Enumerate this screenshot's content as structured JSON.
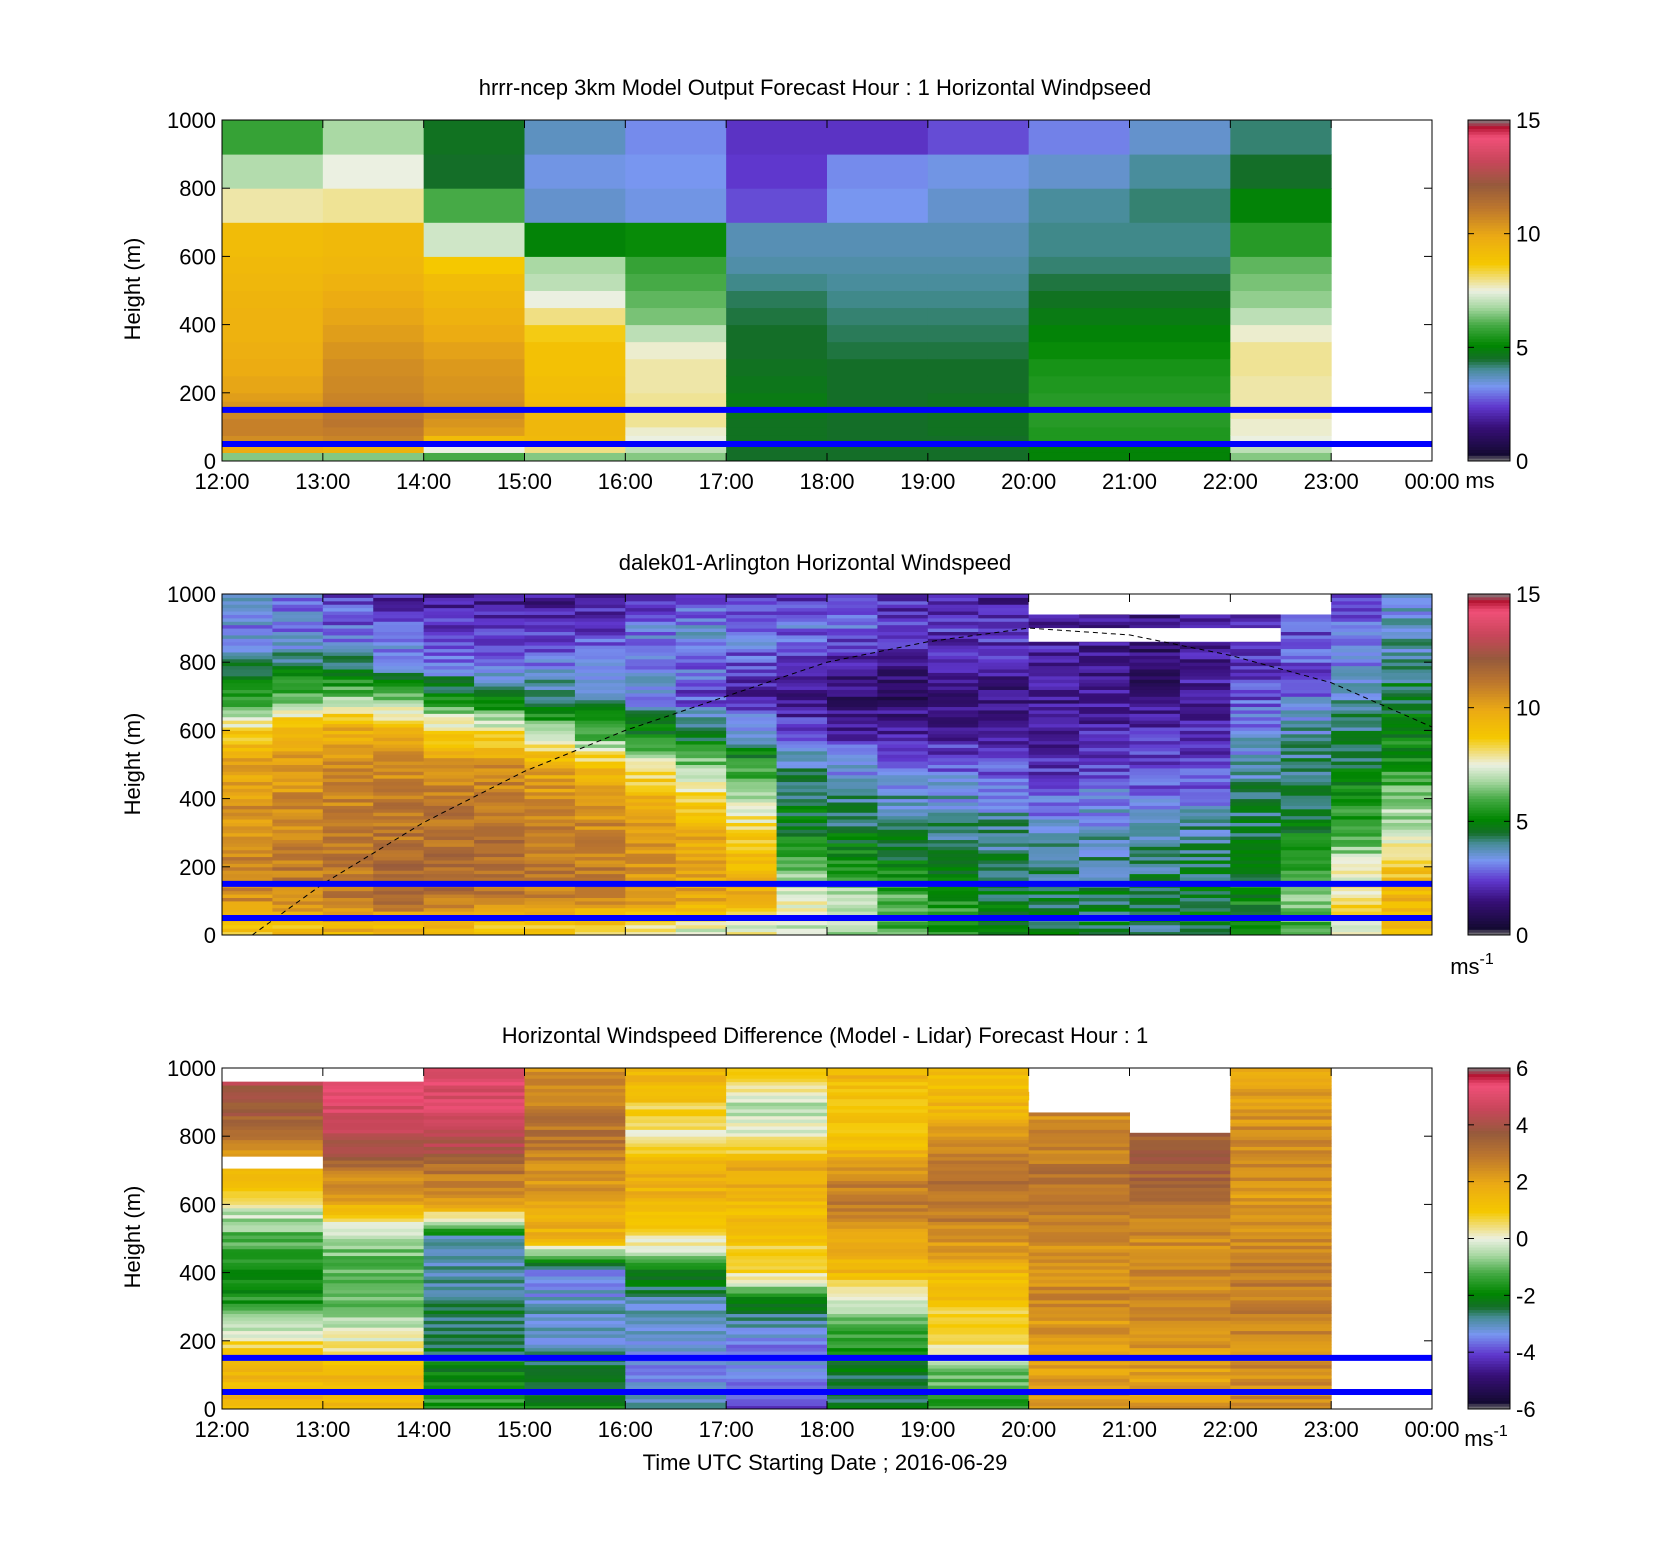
{
  "chart_data": [
    {
      "type": "heatmap",
      "title": "hrrr-ncep 3km Model Output   Forecast Hour : 1 Horizontal Windpseed",
      "xlabel": "",
      "ylabel": "Height (m)",
      "x_ticks": [
        "12:00",
        "13:00",
        "14:00",
        "15:00",
        "16:00",
        "17:00",
        "18:00",
        "19:00",
        "20:00",
        "21:00",
        "22:00",
        "23:00",
        "00:00"
      ],
      "y_ticks": [
        "0",
        "200",
        "400",
        "600",
        "800",
        "1000"
      ],
      "ylim": [
        0,
        1000
      ],
      "colorbar": {
        "min": 0,
        "max": 15,
        "ticks": [
          "0",
          "5",
          "10",
          "15"
        ],
        "unit": "ms",
        "unit_sup": ""
      },
      "reference_lines_m": [
        50,
        150
      ],
      "columns_start_hour": [
        12,
        13,
        14,
        15,
        16,
        17,
        18,
        19,
        20,
        21,
        22
      ],
      "bands_m": [
        0,
        25,
        50,
        75,
        100,
        125,
        150,
        175,
        200,
        250,
        300,
        350,
        400,
        450,
        500,
        550,
        600,
        700,
        800,
        900,
        1000
      ],
      "values": [
        [
          6.5,
          9.8,
          10.6,
          10.9,
          10.9,
          10.7,
          10.4,
          10.2,
          10.0,
          9.8,
          9.7,
          9.6,
          9.6,
          9.5,
          9.4,
          9.3,
          9.2,
          7.8,
          6.9,
          5.8
        ],
        [
          6.5,
          9.6,
          10.8,
          11.0,
          11.2,
          11.1,
          10.9,
          10.8,
          10.7,
          10.6,
          10.4,
          10.2,
          10.0,
          9.8,
          9.6,
          9.4,
          9.3,
          7.9,
          7.5,
          6.8
        ],
        [
          6.0,
          7.5,
          9.2,
          10.2,
          10.4,
          10.6,
          10.6,
          10.5,
          10.4,
          10.3,
          10.1,
          9.8,
          9.6,
          9.4,
          9.2,
          8.7,
          7.2,
          6.0,
          4.5,
          4.6
        ],
        [
          6.5,
          8.0,
          9.3,
          9.4,
          9.4,
          9.3,
          9.3,
          9.2,
          9.1,
          9.0,
          9.0,
          8.6,
          8.0,
          7.5,
          7.0,
          6.8,
          5.0,
          3.6,
          3.4,
          3.7
        ],
        [
          6.5,
          7.0,
          7.5,
          7.6,
          7.9,
          7.9,
          7.9,
          7.9,
          7.8,
          7.8,
          7.6,
          7.0,
          6.4,
          6.2,
          6.0,
          5.8,
          5.2,
          3.4,
          3.3,
          3.2
        ],
        [
          4.5,
          4.5,
          4.6,
          4.6,
          4.6,
          4.7,
          4.8,
          4.8,
          4.7,
          4.6,
          4.5,
          4.5,
          4.4,
          4.3,
          4.1,
          3.9,
          3.8,
          2.6,
          2.4,
          2.3
        ],
        [
          4.5,
          4.5,
          4.5,
          4.5,
          4.5,
          4.5,
          4.5,
          4.5,
          4.5,
          4.5,
          4.4,
          4.3,
          4.2,
          4.1,
          4.0,
          3.9,
          3.8,
          3.3,
          3.2,
          2.3
        ],
        [
          4.5,
          4.5,
          4.5,
          4.6,
          4.6,
          4.6,
          4.6,
          4.6,
          4.5,
          4.5,
          4.4,
          4.3,
          4.2,
          4.1,
          4.0,
          3.9,
          3.8,
          3.6,
          3.4,
          2.6
        ],
        [
          5.0,
          5.0,
          5.5,
          5.5,
          5.6,
          5.6,
          5.6,
          5.6,
          5.5,
          5.4,
          5.2,
          5.0,
          4.8,
          4.6,
          4.4,
          4.2,
          4.1,
          4.0,
          3.6,
          3.1
        ],
        [
          5.0,
          5.0,
          5.5,
          5.5,
          5.6,
          5.6,
          5.6,
          5.6,
          5.5,
          5.4,
          5.2,
          5.0,
          4.8,
          4.6,
          4.4,
          4.2,
          4.1,
          4.2,
          4.0,
          3.6
        ],
        [
          6.5,
          7.0,
          7.5,
          7.6,
          7.6,
          7.8,
          7.8,
          7.8,
          7.8,
          7.9,
          7.9,
          7.6,
          7.0,
          6.6,
          6.4,
          6.2,
          5.6,
          5.0,
          4.5,
          4.2
        ]
      ]
    },
    {
      "type": "heatmap",
      "title": "dalek01-Arlington  Horizontal Windspeed",
      "xlabel": "",
      "ylabel": "Height (m)",
      "x_ticks": [
        "",
        "",
        "",
        "",
        "",
        "",
        "",
        "",
        "",
        "",
        "",
        "",
        ""
      ],
      "y_ticks": [
        "0",
        "200",
        "400",
        "600",
        "800",
        "1000"
      ],
      "ylim": [
        0,
        1000
      ],
      "colorbar": {
        "min": 0,
        "max": 15,
        "ticks": [
          "0",
          "5",
          "10",
          "15"
        ],
        "unit": "ms",
        "unit_sup": "-1"
      },
      "reference_lines_m": [
        50,
        150
      ],
      "overlay_curve": {
        "style": "dashed",
        "x_hours": [
          12.3,
          13,
          14,
          15,
          16,
          17,
          18,
          19,
          20,
          21,
          22,
          23,
          24
        ],
        "y_m": [
          0,
          150,
          330,
          480,
          600,
          700,
          800,
          860,
          900,
          880,
          820,
          740,
          610
        ]
      },
      "profile_times_hour": [
        12.0,
        12.5,
        13.0,
        13.5,
        14.0,
        14.5,
        15.0,
        15.5,
        16.0,
        16.5,
        17.0,
        17.5,
        18.0,
        18.5,
        19.0,
        19.5,
        20.0,
        20.5,
        21.0,
        21.5,
        22.0,
        22.5,
        23.0,
        23.5
      ],
      "profile_anchor_heights_m": [
        25,
        100,
        200,
        300,
        400,
        500,
        600,
        700,
        800,
        900,
        975
      ],
      "profiles": [
        [
          9.0,
          10.5,
          10.8,
          10.6,
          10.3,
          10.0,
          8.5,
          5.5,
          4.0,
          3.2,
          3.5
        ],
        [
          9.0,
          10.8,
          11.0,
          10.8,
          10.5,
          10.2,
          9.6,
          6.0,
          4.2,
          3.0,
          3.2
        ],
        [
          9.5,
          11.0,
          11.2,
          11.0,
          10.8,
          10.5,
          9.8,
          6.5,
          4.0,
          2.8,
          2.6
        ],
        [
          9.5,
          11.2,
          11.5,
          11.2,
          11.0,
          10.6,
          9.5,
          6.0,
          3.5,
          2.5,
          2.2
        ],
        [
          9.5,
          11.2,
          11.5,
          11.3,
          11.0,
          10.5,
          8.5,
          5.0,
          3.2,
          2.2,
          2.0
        ],
        [
          9.0,
          11.0,
          11.4,
          11.2,
          11.0,
          10.4,
          8.0,
          4.5,
          3.0,
          2.0,
          1.8
        ],
        [
          8.8,
          10.8,
          11.2,
          11.0,
          10.6,
          9.8,
          6.5,
          4.2,
          3.0,
          2.2,
          1.8
        ],
        [
          8.5,
          10.5,
          11.0,
          10.8,
          10.2,
          9.0,
          5.5,
          3.8,
          3.2,
          2.5,
          2.0
        ],
        [
          8.0,
          10.2,
          10.6,
          10.3,
          9.5,
          7.5,
          5.0,
          3.0,
          3.3,
          3.0,
          2.2
        ],
        [
          7.5,
          9.8,
          10.2,
          9.8,
          8.6,
          6.5,
          4.2,
          2.5,
          3.0,
          3.4,
          2.6
        ],
        [
          7.5,
          9.5,
          9.5,
          8.5,
          7.2,
          5.5,
          3.5,
          2.0,
          2.5,
          3.2,
          2.4
        ],
        [
          7.0,
          7.8,
          6.5,
          5.0,
          4.5,
          4.0,
          2.5,
          1.6,
          2.0,
          3.0,
          2.2
        ],
        [
          6.8,
          7.0,
          5.5,
          4.5,
          4.0,
          3.2,
          2.0,
          1.3,
          1.8,
          2.8,
          2.4
        ],
        [
          5.8,
          6.0,
          5.0,
          4.5,
          3.8,
          3.0,
          2.0,
          1.2,
          1.6,
          2.5,
          2.2
        ],
        [
          5.5,
          5.5,
          4.6,
          4.2,
          3.6,
          2.8,
          1.8,
          1.2,
          1.8,
          2.4,
          2.0
        ],
        [
          4.8,
          4.8,
          4.4,
          4.0,
          3.5,
          2.6,
          1.6,
          1.4,
          2.0,
          2.4,
          1.8
        ],
        [
          4.5,
          4.6,
          4.0,
          3.5,
          2.8,
          2.2,
          1.8,
          1.6,
          1.8,
          2.2,
          1.6
        ],
        [
          4.5,
          4.5,
          4.0,
          3.6,
          3.2,
          2.4,
          2.0,
          1.8,
          1.6,
          1.8,
          1.5
        ],
        [
          4.2,
          4.4,
          4.2,
          4.0,
          3.0,
          2.4,
          2.0,
          1.4,
          1.2,
          1.6,
          1.8
        ],
        [
          4.6,
          4.8,
          4.4,
          4.0,
          3.2,
          2.5,
          2.0,
          1.8,
          1.8,
          2.0,
          1.8
        ],
        [
          5.0,
          5.2,
          4.8,
          4.5,
          4.2,
          3.8,
          3.2,
          2.6,
          2.4,
          2.2,
          2.2
        ],
        [
          6.0,
          6.5,
          5.5,
          5.0,
          4.5,
          4.2,
          3.8,
          3.0,
          2.6,
          2.6,
          2.4
        ],
        [
          7.5,
          8.5,
          7.2,
          6.0,
          5.2,
          4.6,
          4.2,
          3.8,
          3.2,
          3.0,
          2.8
        ],
        [
          9.0,
          9.5,
          8.8,
          7.0,
          6.5,
          5.5,
          5.0,
          4.6,
          4.0,
          3.6,
          3.4
        ]
      ],
      "missing_segments": [
        {
          "start_hour": 20.0,
          "end_hour": 23.0,
          "from_m": 940,
          "to_m": 1000
        },
        {
          "start_hour": 20.0,
          "end_hour": 22.5,
          "from_m": 860,
          "to_m": 900
        }
      ]
    },
    {
      "type": "heatmap",
      "title": "Horizontal Windspeed Difference (Model - Lidar) Forecast Hour : 1",
      "xlabel": "Time UTC  Starting Date ; 2016-06-29",
      "ylabel": "Height (m)",
      "x_ticks": [
        "12:00",
        "13:00",
        "14:00",
        "15:00",
        "16:00",
        "17:00",
        "18:00",
        "19:00",
        "20:00",
        "21:00",
        "22:00",
        "23:00",
        "00:00"
      ],
      "y_ticks": [
        "0",
        "200",
        "400",
        "600",
        "800",
        "1000"
      ],
      "ylim": [
        0,
        1000
      ],
      "colorbar": {
        "min": -6,
        "max": 6,
        "ticks": [
          "-6",
          "-4",
          "-2",
          "0",
          "2",
          "4",
          "6"
        ],
        "unit": "ms",
        "unit_sup": "-1"
      },
      "reference_lines_m": [
        50,
        150
      ],
      "columns_start_hour": [
        12,
        13,
        14,
        15,
        16,
        17,
        18,
        19,
        20,
        21,
        22
      ],
      "column_top_m": [
        960,
        960,
        1000,
        1000,
        1000,
        1000,
        1000,
        1000,
        870,
        810,
        1000
      ],
      "anchor_heights_m": [
        25,
        100,
        200,
        300,
        400,
        500,
        600,
        700,
        800,
        900,
        975
      ],
      "profiles": [
        [
          1.5,
          1.5,
          0.5,
          -1.5,
          -2.0,
          -1.2,
          0.0,
          1.5,
          3.0,
          4.0,
          4.2
        ],
        [
          1.5,
          1.5,
          0.3,
          -1.0,
          -1.2,
          -0.8,
          1.8,
          2.8,
          4.5,
          5.0,
          5.5
        ],
        [
          -1.5,
          -2.0,
          -2.5,
          -2.5,
          -2.8,
          -3.0,
          2.0,
          3.0,
          4.5,
          5.0,
          5.0
        ],
        [
          -2.0,
          -2.5,
          -3.0,
          -3.0,
          -3.5,
          1.5,
          2.0,
          2.5,
          3.0,
          2.8,
          2.5
        ],
        [
          -3.0,
          -3.5,
          -3.0,
          -3.0,
          -2.0,
          0.5,
          1.5,
          1.8,
          0.0,
          1.0,
          1.5
        ],
        [
          -4.0,
          -3.5,
          -3.5,
          -2.5,
          0.5,
          1.0,
          1.5,
          2.0,
          0.0,
          -0.5,
          0.8
        ],
        [
          -2.5,
          -2.5,
          -1.5,
          -0.5,
          1.5,
          2.0,
          3.0,
          2.5,
          1.0,
          1.0,
          1.5
        ],
        [
          -1.5,
          -1.0,
          0.5,
          1.0,
          1.5,
          2.5,
          3.0,
          3.0,
          2.0,
          1.5,
          1.2
        ],
        [
          2.2,
          2.2,
          2.2,
          2.5,
          2.5,
          2.5,
          2.8,
          3.0,
          2.5,
          2.5,
          1.5
        ],
        [
          2.2,
          2.2,
          2.2,
          2.5,
          2.5,
          2.5,
          3.0,
          3.5,
          3.5,
          3.5,
          3.5
        ],
        [
          2.5,
          2.5,
          2.5,
          2.8,
          2.8,
          2.5,
          2.2,
          2.5,
          2.5,
          2.2,
          2.0
        ]
      ],
      "missing_segments": [
        {
          "start_hour": 12.0,
          "end_hour": 13.0,
          "from_m": 705,
          "to_m": 740
        },
        {
          "start_hour": 20.0,
          "end_hour": 21.0,
          "from_m": 930,
          "to_m": 1000
        },
        {
          "start_hour": 20.0,
          "end_hour": 21.0,
          "from_m": 870,
          "to_m": 905
        }
      ]
    }
  ]
}
